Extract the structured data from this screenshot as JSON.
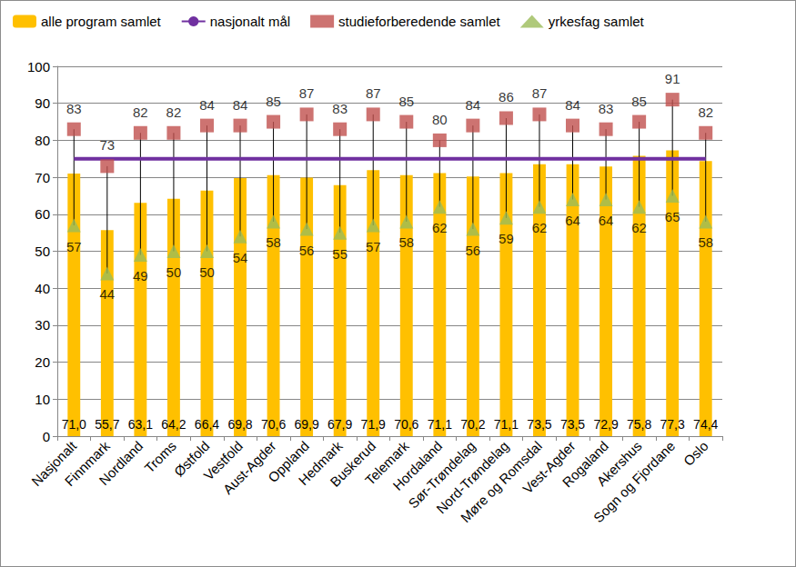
{
  "chart_data": {
    "type": "bar",
    "categories": [
      "Nasjonalt",
      "Finnmark",
      "Nordland",
      "Troms",
      "Østfold",
      "Vestfold",
      "Aust-Agder",
      "Oppland",
      "Hedmark",
      "Buskerud",
      "Telemark",
      "Hordaland",
      "Sør-Trøndelag",
      "Nord-Trøndelag",
      "Møre og Romsdal",
      "Vest-Agder",
      "Rogaland",
      "Akershus",
      "Sogn og Fjordane",
      "Oslo"
    ],
    "series": [
      {
        "name": "alle program samlet",
        "type": "bar",
        "color": "#FFC000",
        "values": [
          71.0,
          55.7,
          63.1,
          64.2,
          66.4,
          69.8,
          70.6,
          69.9,
          67.9,
          71.9,
          70.6,
          71.1,
          70.2,
          71.1,
          73.5,
          73.5,
          72.9,
          75.8,
          77.3,
          74.4
        ],
        "value_labels": [
          "71,0",
          "55,7",
          "63,1",
          "64,2",
          "66,4",
          "69,8",
          "70,6",
          "69,9",
          "67,9",
          "71,9",
          "70,6",
          "71,1",
          "70,2",
          "71,1",
          "73,5",
          "73,5",
          "72,9",
          "75,8",
          "77,3",
          "74,4"
        ],
        "data_labels": true
      },
      {
        "name": "nasjonalt mål",
        "type": "line",
        "color": "#7030A0",
        "values": [
          75,
          75,
          75,
          75,
          75,
          75,
          75,
          75,
          75,
          75,
          75,
          75,
          75,
          75,
          75,
          75,
          75,
          75,
          75,
          75
        ],
        "data_labels": false
      },
      {
        "name": "studieforberedende samlet",
        "type": "scatter",
        "marker": "square",
        "color": "#C0504D",
        "values": [
          83,
          73,
          82,
          82,
          84,
          84,
          85,
          87,
          83,
          87,
          85,
          80,
          84,
          86,
          87,
          84,
          83,
          85,
          91,
          82
        ],
        "data_labels": true
      },
      {
        "name": "yrkesfag samlet",
        "type": "scatter",
        "marker": "triangle",
        "color": "#9BBB59",
        "values": [
          57,
          44,
          49,
          50,
          50,
          54,
          58,
          56,
          55,
          57,
          58,
          62,
          56,
          59,
          62,
          64,
          64,
          62,
          65,
          58
        ],
        "data_labels": true
      }
    ],
    "ylim": [
      0,
      100
    ],
    "yticks": [
      0,
      10,
      20,
      30,
      40,
      50,
      60,
      70,
      80,
      90,
      100
    ],
    "grid": true,
    "legend": "top",
    "data_labels": true
  }
}
